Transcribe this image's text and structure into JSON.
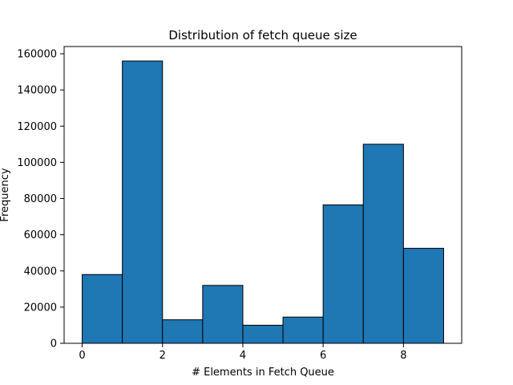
{
  "chart_data": {
    "type": "bar",
    "title": "Distribution of fetch queue size",
    "xlabel": "# Elements in Fetch Queue",
    "ylabel": "Frequency",
    "bins": [
      {
        "start": 0,
        "end": 1,
        "value": 38000
      },
      {
        "start": 1,
        "end": 2,
        "value": 156000
      },
      {
        "start": 2,
        "end": 3,
        "value": 13000
      },
      {
        "start": 3,
        "end": 4,
        "value": 32000
      },
      {
        "start": 4,
        "end": 5,
        "value": 10000
      },
      {
        "start": 5,
        "end": 6,
        "value": 14500
      },
      {
        "start": 6,
        "end": 7,
        "value": 76500
      },
      {
        "start": 7,
        "end": 8,
        "value": 110000
      },
      {
        "start": 8,
        "end": 9,
        "value": 52500
      }
    ],
    "xlim": [
      -0.45,
      9.45
    ],
    "ylim": [
      0,
      164000
    ],
    "xticks": [
      {
        "value": 0,
        "label": "0"
      },
      {
        "value": 2,
        "label": "2"
      },
      {
        "value": 4,
        "label": "4"
      },
      {
        "value": 6,
        "label": "6"
      },
      {
        "value": 8,
        "label": "8"
      }
    ],
    "yticks": [
      {
        "value": 0,
        "label": "0"
      },
      {
        "value": 20000,
        "label": "20000"
      },
      {
        "value": 40000,
        "label": "40000"
      },
      {
        "value": 60000,
        "label": "60000"
      },
      {
        "value": 80000,
        "label": "80000"
      },
      {
        "value": 100000,
        "label": "100000"
      },
      {
        "value": 120000,
        "label": "120000"
      },
      {
        "value": 140000,
        "label": "140000"
      },
      {
        "value": 160000,
        "label": "160000"
      }
    ],
    "bar_color": "#1f77b4",
    "edge_color": "#000000",
    "grid": false
  }
}
